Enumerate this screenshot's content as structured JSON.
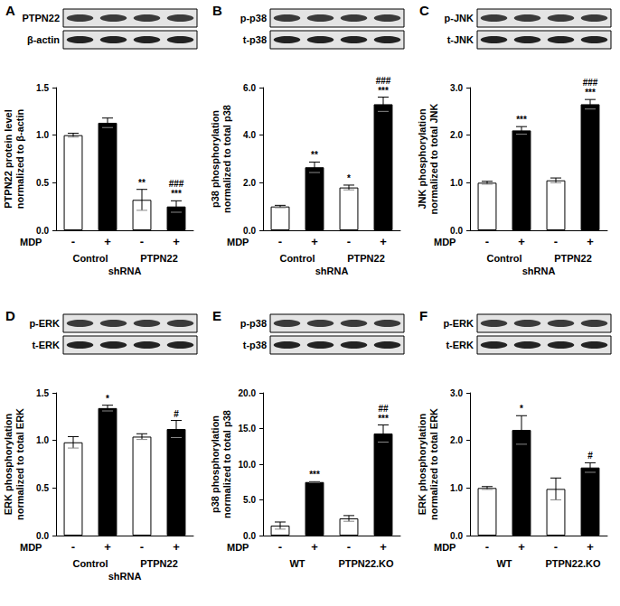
{
  "chart_data": [
    {
      "panel": "A",
      "type": "bar",
      "blot_labels": [
        "PTPN22",
        "β-actin"
      ],
      "y_label": "PTPN22 protein level\nnormalized to β-actin",
      "x_label": "MDP",
      "categories": [
        "-",
        "+",
        "-",
        "+"
      ],
      "groups": [
        "Control",
        "PTPN22"
      ],
      "group_title": "shRNA",
      "values": [
        1.0,
        1.13,
        0.32,
        0.25
      ],
      "errors": [
        0.02,
        0.05,
        0.11,
        0.06
      ],
      "colors": [
        "#ffffff",
        "#000000",
        "#ffffff",
        "#000000"
      ],
      "annotations": [
        null,
        null,
        [
          "**"
        ],
        [
          "###",
          "***"
        ]
      ],
      "ylim": [
        0,
        1.5
      ],
      "yticks": [
        {
          "value": 0,
          "label": "0.0"
        },
        {
          "value": 0.5,
          "label": "0.5"
        },
        {
          "value": 1,
          "label": "1.0"
        },
        {
          "value": 1.5,
          "label": "1.5"
        }
      ]
    },
    {
      "panel": "B",
      "type": "bar",
      "blot_labels": [
        "p-p38",
        "t-p38"
      ],
      "y_label": "p38 phosphorylation\nnormalized to total p38",
      "x_label": "MDP",
      "categories": [
        "-",
        "+",
        "-",
        "+"
      ],
      "groups": [
        "Control",
        "PTPN22"
      ],
      "group_title": "shRNA",
      "values": [
        1.0,
        2.65,
        1.8,
        5.3
      ],
      "errors": [
        0.05,
        0.22,
        0.1,
        0.3
      ],
      "colors": [
        "#ffffff",
        "#000000",
        "#ffffff",
        "#000000"
      ],
      "annotations": [
        null,
        [
          "**"
        ],
        [
          "*"
        ],
        [
          "###",
          "***"
        ]
      ],
      "ylim": [
        0,
        6
      ],
      "yticks": [
        {
          "value": 0,
          "label": "0.0"
        },
        {
          "value": 2,
          "label": "2.0"
        },
        {
          "value": 4,
          "label": "4.0"
        },
        {
          "value": 6,
          "label": "6.0"
        }
      ]
    },
    {
      "panel": "C",
      "type": "bar",
      "blot_labels": [
        "p-JNK",
        "t-JNK"
      ],
      "y_label": "JNK phosphorylation\nnormalized to total JNK",
      "x_label": "MDP",
      "categories": [
        "-",
        "+",
        "-",
        "+"
      ],
      "groups": [
        "Control",
        "PTPN22"
      ],
      "group_title": "shRNA",
      "values": [
        1.0,
        2.1,
        1.05,
        2.65
      ],
      "errors": [
        0.03,
        0.08,
        0.05,
        0.1
      ],
      "colors": [
        "#ffffff",
        "#000000",
        "#ffffff",
        "#000000"
      ],
      "annotations": [
        null,
        [
          "***"
        ],
        null,
        [
          "###",
          "***"
        ]
      ],
      "ylim": [
        0,
        3
      ],
      "yticks": [
        {
          "value": 0,
          "label": "0.0"
        },
        {
          "value": 1,
          "label": "1.0"
        },
        {
          "value": 2,
          "label": "2.0"
        },
        {
          "value": 3,
          "label": "3.0"
        }
      ]
    },
    {
      "panel": "D",
      "type": "bar",
      "blot_labels": [
        "p-ERK",
        "t-ERK"
      ],
      "y_label": "ERK phosphorylation\nnormalized to total ERK",
      "x_label": "MDP",
      "categories": [
        "-",
        "+",
        "-",
        "+"
      ],
      "groups": [
        "Control",
        "PTPN22"
      ],
      "group_title": "shRNA",
      "values": [
        0.98,
        1.34,
        1.04,
        1.12
      ],
      "errors": [
        0.06,
        0.03,
        0.03,
        0.09
      ],
      "colors": [
        "#ffffff",
        "#000000",
        "#ffffff",
        "#000000"
      ],
      "annotations": [
        null,
        [
          "*"
        ],
        null,
        [
          "#"
        ]
      ],
      "ylim": [
        0,
        1.5
      ],
      "yticks": [
        {
          "value": 0,
          "label": "0.0"
        },
        {
          "value": 0.5,
          "label": "0.5"
        },
        {
          "value": 1,
          "label": "1.0"
        },
        {
          "value": 1.5,
          "label": "1.5"
        }
      ]
    },
    {
      "panel": "E",
      "type": "bar",
      "blot_labels": [
        "p-p38",
        "t-p38"
      ],
      "y_label": "p38 phosphorylation\nnormalized to total p38",
      "x_label": "MDP",
      "categories": [
        "-",
        "+",
        "-",
        "+"
      ],
      "groups": [
        "WT",
        "PTPN22.KO"
      ],
      "values": [
        1.4,
        7.5,
        2.4,
        14.3
      ],
      "errors": [
        0.5,
        0.05,
        0.4,
        1.2
      ],
      "colors": [
        "#ffffff",
        "#000000",
        "#ffffff",
        "#000000"
      ],
      "annotations": [
        null,
        [
          "***"
        ],
        null,
        [
          "##",
          "***"
        ]
      ],
      "ylim": [
        0,
        20
      ],
      "yticks": [
        {
          "value": 0,
          "label": "0.0"
        },
        {
          "value": 5,
          "label": "5.0"
        },
        {
          "value": 10,
          "label": "10.0"
        },
        {
          "value": 15,
          "label": "15.0"
        },
        {
          "value": 20,
          "label": "20.0"
        }
      ]
    },
    {
      "panel": "F",
      "type": "bar",
      "blot_labels": [
        "p-ERK",
        "t-ERK"
      ],
      "y_label": "ERK phosphorylation\nnormalized to total ERK",
      "x_label": "MDP",
      "categories": [
        "-",
        "+",
        "-",
        "+"
      ],
      "groups": [
        "WT",
        "PTPN22.KO"
      ],
      "values": [
        1.0,
        2.22,
        0.98,
        1.43
      ],
      "errors": [
        0.03,
        0.3,
        0.23,
        0.1
      ],
      "colors": [
        "#ffffff",
        "#000000",
        "#ffffff",
        "#000000"
      ],
      "annotations": [
        null,
        [
          "*"
        ],
        null,
        [
          "#"
        ]
      ],
      "ylim": [
        0,
        3
      ],
      "yticks": [
        {
          "value": 0,
          "label": "0.0"
        },
        {
          "value": 1,
          "label": "1.0"
        },
        {
          "value": 2,
          "label": "2.0"
        },
        {
          "value": 3,
          "label": "3.0"
        }
      ]
    }
  ]
}
